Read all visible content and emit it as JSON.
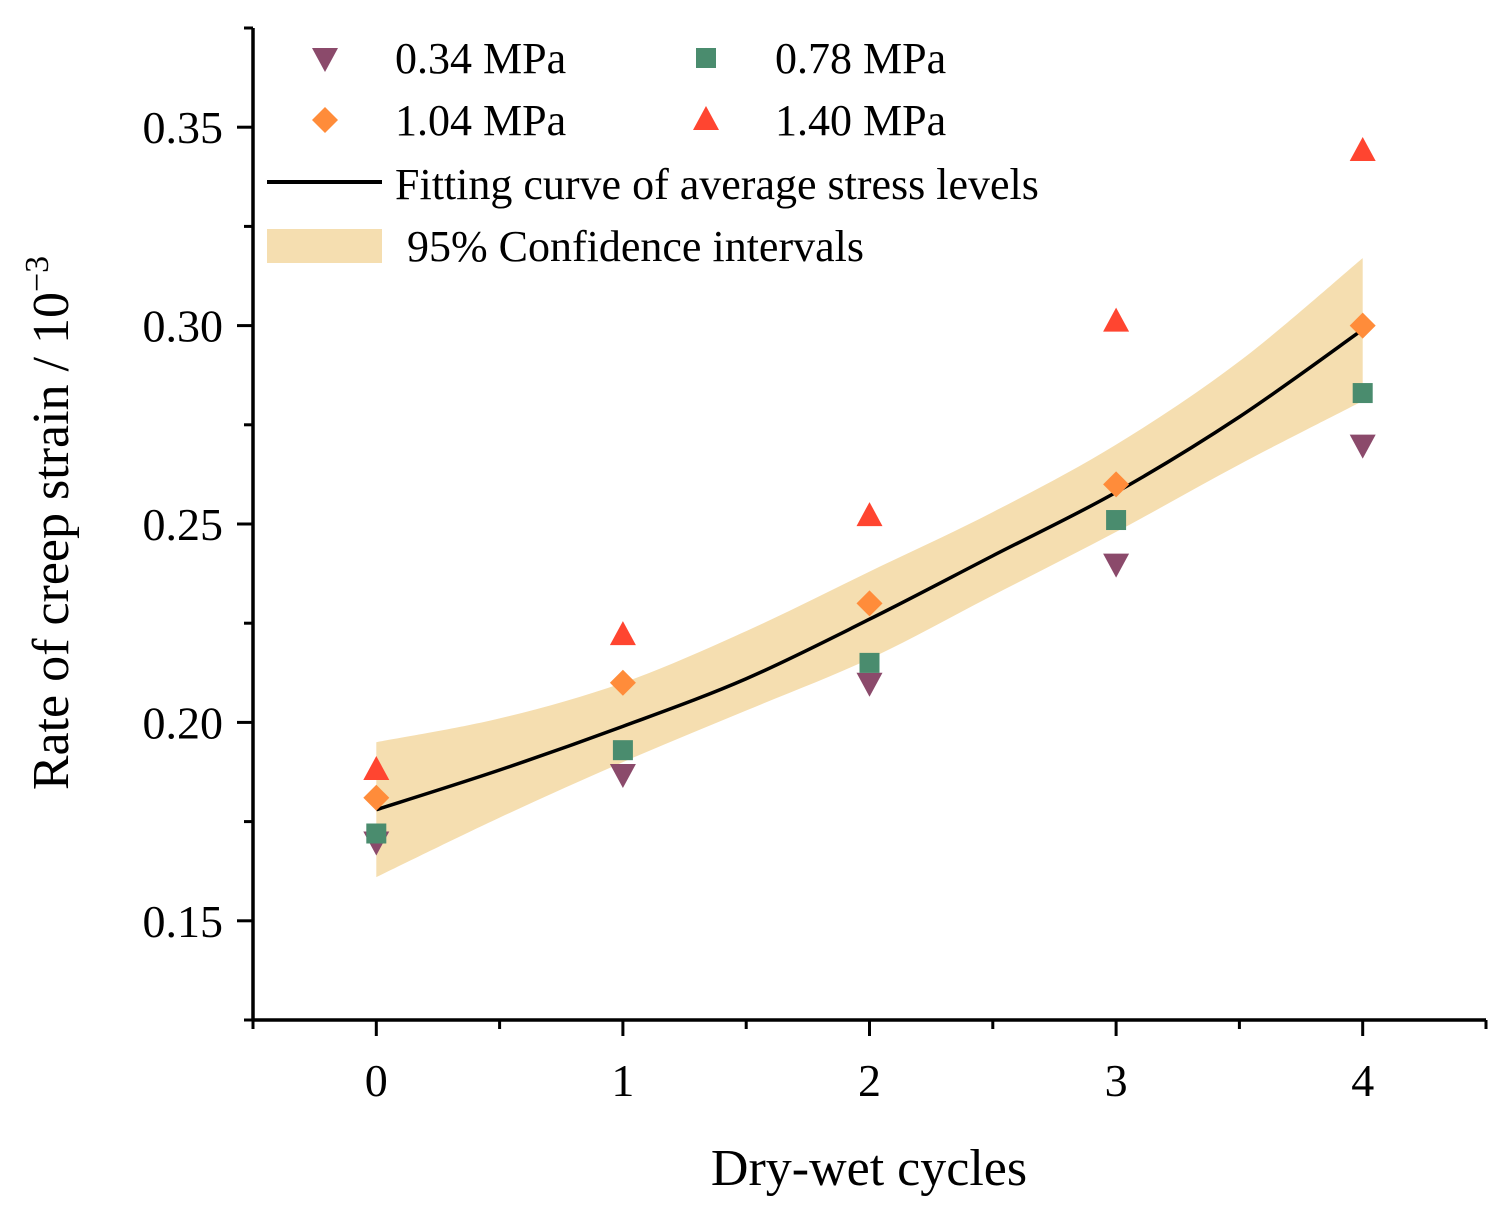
{
  "chart_data": {
    "type": "scatter",
    "title": "",
    "xlabel": "Dry-wet cycles",
    "ylabel": "Rate of creep strain / 10",
    "ylabel_exponent": "−3",
    "xlim": [
      -0.5,
      4.5
    ],
    "ylim": [
      0.125,
      0.375
    ],
    "xticks": [
      0,
      1,
      2,
      3,
      4
    ],
    "xtick_labels": [
      "0",
      "1",
      "2",
      "3",
      "4"
    ],
    "xminor": [
      -0.5,
      0.5,
      1.5,
      2.5,
      3.5,
      4.5
    ],
    "yticks": [
      0.15,
      0.2,
      0.25,
      0.3,
      0.35
    ],
    "ytick_labels": [
      "0.15",
      "0.20",
      "0.25",
      "0.30",
      "0.35"
    ],
    "yminor": [
      0.125,
      0.175,
      0.225,
      0.275,
      0.325,
      0.375
    ],
    "grid": false,
    "legend_position": "top-left",
    "series": [
      {
        "name": "0.34 MPa",
        "marker": "triangle-down",
        "color": "#8B4A6B",
        "x": [
          0,
          1,
          2,
          3,
          4
        ],
        "y": [
          0.17,
          0.187,
          0.21,
          0.24,
          0.27
        ]
      },
      {
        "name": "0.78 MPa",
        "marker": "square",
        "color": "#4A8C6E",
        "x": [
          0,
          1,
          2,
          3,
          4
        ],
        "y": [
          0.172,
          0.193,
          0.215,
          0.251,
          0.283
        ]
      },
      {
        "name": "1.04 MPa",
        "marker": "diamond",
        "color": "#FF8C3A",
        "x": [
          0,
          1,
          2,
          3,
          4
        ],
        "y": [
          0.181,
          0.21,
          0.23,
          0.26,
          0.3
        ]
      },
      {
        "name": "1.40 MPa",
        "marker": "triangle-up",
        "color": "#FF4530",
        "x": [
          0,
          1,
          2,
          3,
          4
        ],
        "y": [
          0.188,
          0.222,
          0.252,
          0.301,
          0.344
        ]
      }
    ],
    "fit": {
      "name": "Fitting curve of average stress levels",
      "color": "#000000",
      "x": [
        0,
        0.5,
        1,
        1.5,
        2,
        2.5,
        3,
        3.5,
        4
      ],
      "y": [
        0.178,
        0.188,
        0.199,
        0.211,
        0.226,
        0.242,
        0.258,
        0.277,
        0.299
      ]
    },
    "confidence_band": {
      "name": "95% Confidence intervals",
      "color": "#F5DEB0",
      "x": [
        0,
        0.5,
        1,
        1.5,
        2,
        2.5,
        3,
        3.5,
        4
      ],
      "lower": [
        0.161,
        0.176,
        0.19,
        0.203,
        0.216,
        0.232,
        0.248,
        0.265,
        0.281
      ],
      "upper": [
        0.195,
        0.201,
        0.21,
        0.223,
        0.238,
        0.253,
        0.27,
        0.291,
        0.317
      ]
    }
  }
}
